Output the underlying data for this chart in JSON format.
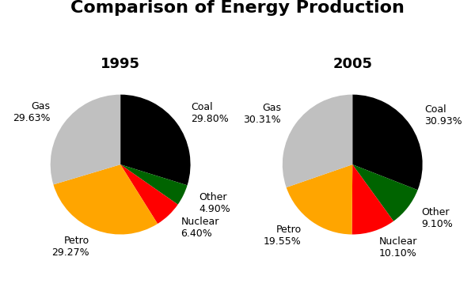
{
  "title": "Comparison of Energy Production",
  "title_fontsize": 16,
  "title_fontweight": "bold",
  "year1": "1995",
  "year2": "2005",
  "year_color": "#000000",
  "year_fontsize": 13,
  "year_fontweight": "bold",
  "labels_1995": [
    "Coal\n29.80%",
    "Other\n4.90%",
    "Nuclear\n6.40%",
    "Petro\n29.27%",
    "Gas\n29.63%"
  ],
  "labels_2005": [
    "Coal\n30.93%",
    "Other\n9.10%",
    "Nuclear\n10.10%",
    "Petro\n19.55%",
    "Gas\n30.31%"
  ],
  "values_1995": [
    29.8,
    4.9,
    6.4,
    29.27,
    29.63
  ],
  "values_2005": [
    30.93,
    9.1,
    10.1,
    19.55,
    30.31
  ],
  "colors": [
    "#000000",
    "#006400",
    "#ff0000",
    "#ffa500",
    "#c0c0c0"
  ],
  "label_fontsize": 9,
  "label_color": "#000000",
  "startangle": 90,
  "labeldistance": 1.25
}
